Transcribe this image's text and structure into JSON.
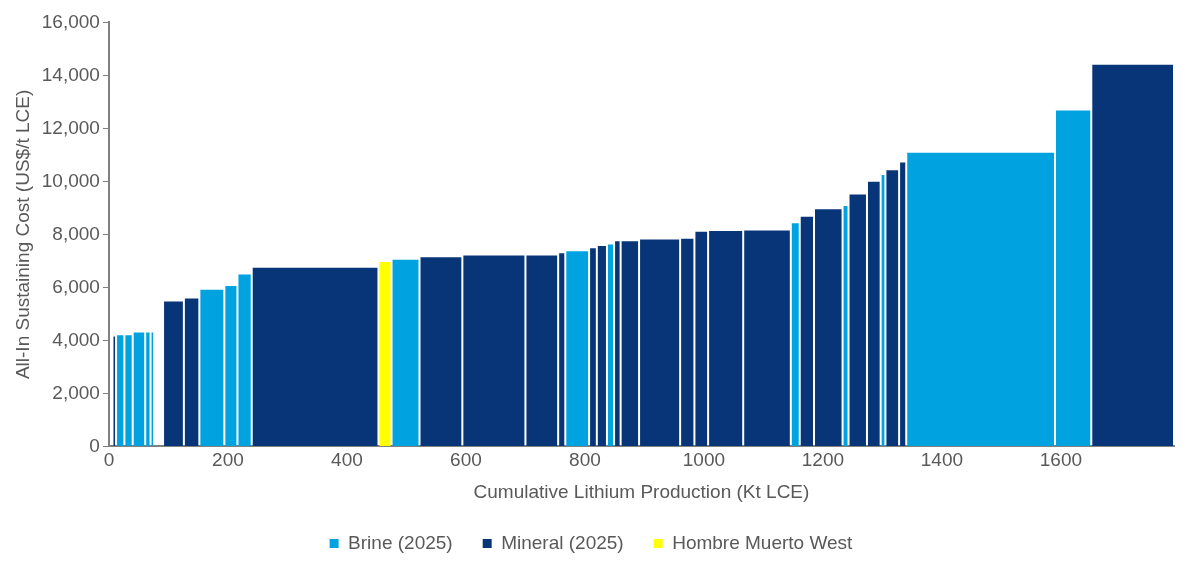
{
  "chart_data": {
    "type": "histogram",
    "xlabel": "Cumulative Lithium Production (Kt LCE)",
    "ylabel": "All-In Sustaining Cost (US$/t LCE)",
    "bins": [
      6,
      12,
      26,
      40,
      61,
      70,
      76,
      91,
      126,
      152,
      194,
      216,
      240,
      453,
      475,
      522,
      594,
      700,
      755,
      767,
      807,
      820,
      837,
      849,
      860,
      891,
      960,
      984,
      1007,
      1066,
      1146,
      1161,
      1185,
      1233,
      1243,
      1274,
      1297,
      1305,
      1328,
      1340,
      1590,
      1651,
      1790
    ],
    "series": [
      {
        "name": "Brine (2025)",
        "color": "#00a3e0",
        "values": [
          null,
          4190,
          4190,
          4300,
          4300,
          4300,
          null,
          null,
          null,
          5910,
          6050,
          6490,
          null,
          null,
          7040,
          null,
          null,
          null,
          null,
          7360,
          null,
          null,
          7620,
          null,
          null,
          null,
          null,
          null,
          null,
          null,
          8420,
          null,
          null,
          9070,
          null,
          null,
          10240,
          null,
          null,
          11080,
          12680,
          null
        ]
      },
      {
        "name": "Mineral (2025)",
        "color": "#073578",
        "values": [
          4150,
          null,
          null,
          null,
          null,
          null,
          null,
          5470,
          5580,
          null,
          null,
          null,
          6740,
          null,
          null,
          7140,
          7200,
          7200,
          7290,
          null,
          7480,
          7560,
          null,
          7740,
          7740,
          7810,
          7840,
          8100,
          8130,
          8150,
          null,
          8670,
          8950,
          null,
          9510,
          9990,
          null,
          10420,
          10710,
          null,
          null,
          14400
        ]
      },
      {
        "name": "Hombre Muerto West",
        "color": "#ffff00",
        "values": [
          null,
          null,
          null,
          null,
          null,
          null,
          null,
          null,
          null,
          null,
          null,
          null,
          null,
          6960,
          null,
          null,
          null,
          null,
          null,
          null,
          null,
          null,
          null,
          null,
          null,
          null,
          null,
          null,
          null,
          null,
          null,
          null,
          null,
          null,
          null,
          null,
          null,
          null,
          null,
          null,
          null,
          null
        ]
      }
    ],
    "xlim": [
      0,
      1790
    ],
    "xticks": [
      0,
      200,
      400,
      600,
      800,
      1000,
      1200,
      1400,
      1600
    ],
    "ylim": [
      0,
      16000
    ],
    "yticks": [
      0,
      {
        "value": 2000,
        "label": "2,000"
      },
      {
        "value": 4000,
        "label": "4,000"
      },
      {
        "value": 6000,
        "label": "6,000"
      },
      {
        "value": 8000,
        "label": "8,000"
      },
      {
        "value": 10000,
        "label": "10,000"
      },
      {
        "value": 12000,
        "label": "12,000"
      },
      {
        "value": 14000,
        "label": "14,000"
      },
      {
        "value": 16000,
        "label": "16,000"
      }
    ],
    "grid": false,
    "legend": "bottom"
  }
}
